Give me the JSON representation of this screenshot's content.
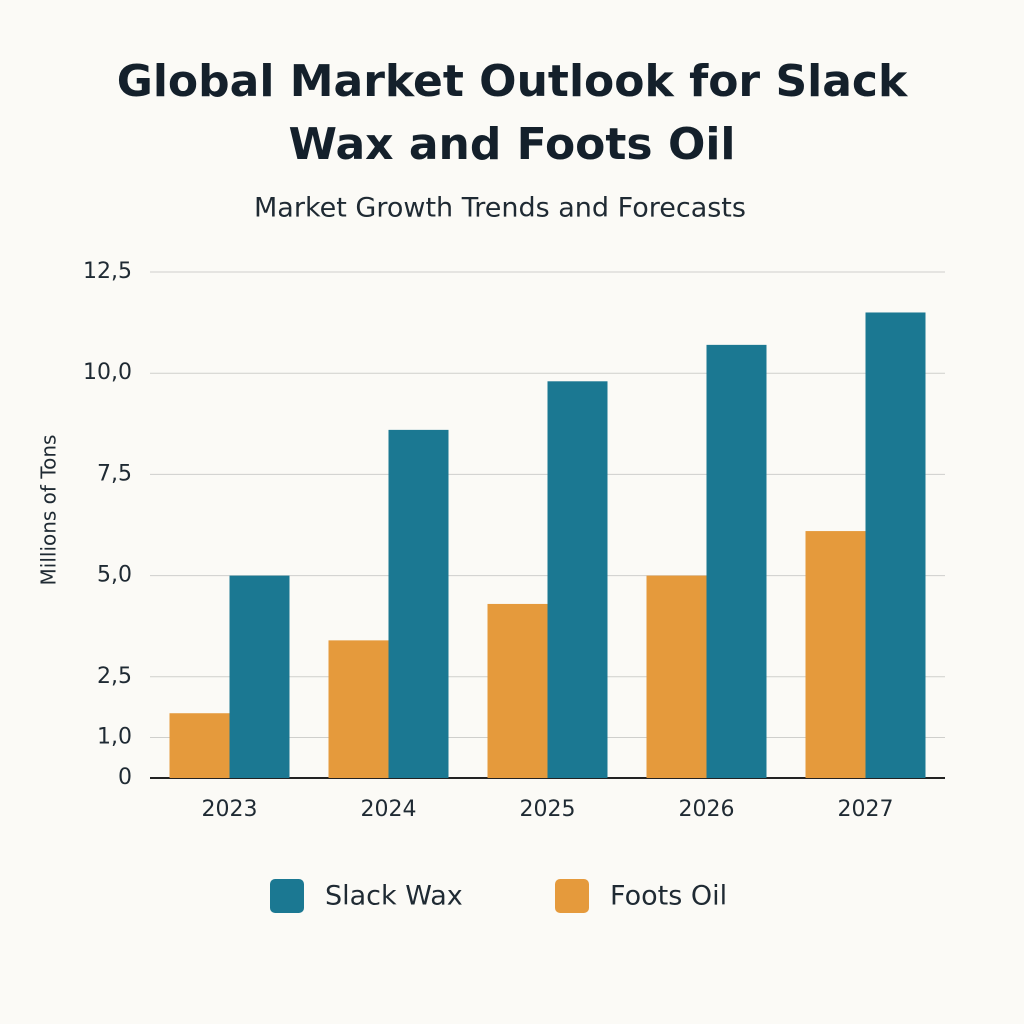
{
  "chart_data": {
    "type": "bar",
    "title": "Global Market Outlook for Slack Wax and Foots Oil",
    "subtitle": "Market Growth Trends and Forecasts",
    "y_label": "Millions of Tons",
    "categories": [
      "2023",
      "2024",
      "2025",
      "2026",
      "2027"
    ],
    "series": [
      {
        "name": "Slack Wax",
        "color": "#1b7892",
        "values": [
          5.0,
          8.6,
          9.8,
          10.7,
          11.5
        ]
      },
      {
        "name": "Foots Oil",
        "color": "#e59a3c",
        "values": [
          1.6,
          3.4,
          4.3,
          5.0,
          6.1
        ]
      }
    ],
    "ylim": [
      0,
      12.5
    ],
    "yticks": [
      {
        "value": 12.5,
        "label": "12,5"
      },
      {
        "value": 10,
        "label": "10,0"
      },
      {
        "value": 7.5,
        "label": "7,5"
      },
      {
        "value": 5,
        "label": "5,0"
      },
      {
        "value": 2.5,
        "label": "2,5"
      },
      {
        "value": 1,
        "label": "1,0"
      },
      0
    ],
    "grid": true
  }
}
